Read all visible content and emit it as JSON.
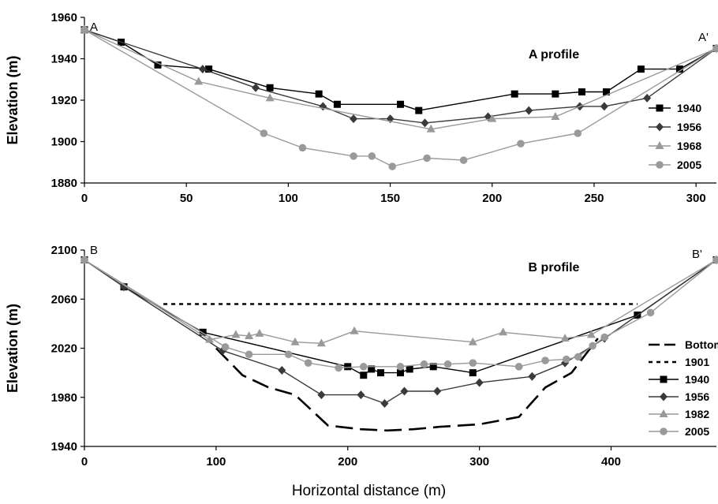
{
  "chart_data": [
    {
      "type": "line",
      "title": "A profile",
      "ylabel": "Elevation (m)",
      "xlabel": "",
      "xlim": [
        0,
        310
      ],
      "ylim": [
        1880,
        1960
      ],
      "xticks": [
        0,
        50,
        100,
        150,
        200,
        250,
        300
      ],
      "yticks": [
        1880,
        1900,
        1920,
        1940,
        1960
      ],
      "corner_labels": [
        "A",
        "A'"
      ],
      "legend_position": "right",
      "grid": false,
      "series": [
        {
          "name": "1940",
          "marker": "square",
          "color": "#000000",
          "x": [
            0,
            18,
            36,
            61,
            91,
            115,
            124,
            155,
            164,
            211,
            231,
            244,
            256,
            273,
            292,
            310
          ],
          "y": [
            1954,
            1948,
            1937,
            1935,
            1926,
            1923,
            1918,
            1918,
            1915,
            1923,
            1923,
            1924,
            1924,
            1935,
            1935,
            1945
          ]
        },
        {
          "name": "1956",
          "marker": "diamond",
          "color": "#3a3a3a",
          "x": [
            0,
            58,
            84,
            117,
            132,
            150,
            167,
            198,
            218,
            243,
            255,
            276,
            310
          ],
          "y": [
            1954,
            1935,
            1926,
            1917,
            1911,
            1911,
            1909,
            1912,
            1915,
            1917,
            1917,
            1921,
            1945
          ]
        },
        {
          "name": "1968",
          "marker": "triangle",
          "color": "#999999",
          "x": [
            0,
            56,
            91,
            170,
            200,
            231,
            310
          ],
          "y": [
            1954,
            1929,
            1921,
            1906,
            1911,
            1912,
            1945
          ]
        },
        {
          "name": "2005",
          "marker": "circle",
          "color": "#9a9a9a",
          "x": [
            0,
            88,
            107,
            132,
            141,
            151,
            168,
            186,
            214,
            242,
            310
          ],
          "y": [
            1954,
            1904,
            1897,
            1893,
            1893,
            1888,
            1892,
            1891,
            1899,
            1904,
            1945
          ]
        }
      ]
    },
    {
      "type": "line",
      "title": "B profile",
      "ylabel": "Elevation (m)",
      "xlabel": "Horizontal distance (m)",
      "xlim": [
        0,
        480
      ],
      "ylim": [
        1940,
        2100
      ],
      "xticks": [
        0,
        100,
        200,
        300,
        400
      ],
      "yticks": [
        1940,
        1980,
        2020,
        2060,
        2100
      ],
      "corner_labels": [
        "B",
        "B'"
      ],
      "legend_position": "bottom-right",
      "grid": false,
      "series": [
        {
          "name": "Bottom",
          "marker": "none",
          "dash": "long",
          "color": "#000000",
          "x": [
            100,
            120,
            140,
            160,
            185,
            210,
            230,
            250,
            270,
            300,
            330,
            350,
            370,
            390
          ],
          "y": [
            2020,
            1998,
            1988,
            1982,
            1957,
            1954,
            1953,
            1954,
            1956,
            1958,
            1964,
            1988,
            2000,
            2028
          ]
        },
        {
          "name": "1901",
          "marker": "none",
          "dash": "short",
          "color": "#000000",
          "x": [
            60,
            420
          ],
          "y": [
            2056,
            2056
          ]
        },
        {
          "name": "1940",
          "marker": "square",
          "color": "#000000",
          "x": [
            0,
            30,
            90,
            200,
            212,
            218,
            225,
            240,
            247,
            265,
            295,
            420,
            480
          ],
          "y": [
            2092,
            2070,
            2033,
            2005,
            1998,
            2003,
            2000,
            2000,
            2003,
            2005,
            2000,
            2047,
            2092
          ]
        },
        {
          "name": "1956",
          "marker": "diamond",
          "color": "#3a3a3a",
          "x": [
            0,
            30,
            105,
            150,
            180,
            210,
            228,
            243,
            268,
            300,
            340,
            365,
            395,
            480
          ],
          "y": [
            2092,
            2070,
            2018,
            2002,
            1982,
            1982,
            1975,
            1985,
            1985,
            1992,
            1997,
            2008,
            2028,
            2092
          ]
        },
        {
          "name": "1982",
          "marker": "triangle",
          "color": "#999999",
          "x": [
            0,
            95,
            115,
            125,
            133,
            160,
            180,
            205,
            295,
            318,
            365,
            385,
            480
          ],
          "y": [
            2092,
            2027,
            2031,
            2030,
            2032,
            2025,
            2024,
            2034,
            2025,
            2033,
            2028,
            2031,
            2092
          ]
        },
        {
          "name": "2005",
          "marker": "circle",
          "color": "#9a9a9a",
          "x": [
            0,
            107,
            125,
            155,
            170,
            193,
            212,
            240,
            258,
            276,
            295,
            330,
            350,
            366,
            375,
            386,
            395,
            430,
            480
          ],
          "y": [
            2092,
            2021,
            2015,
            2015,
            2008,
            2004,
            2005,
            2005,
            2007,
            2007,
            2008,
            2005,
            2010,
            2011,
            2013,
            2022,
            2029,
            2049,
            2092
          ]
        }
      ]
    }
  ]
}
